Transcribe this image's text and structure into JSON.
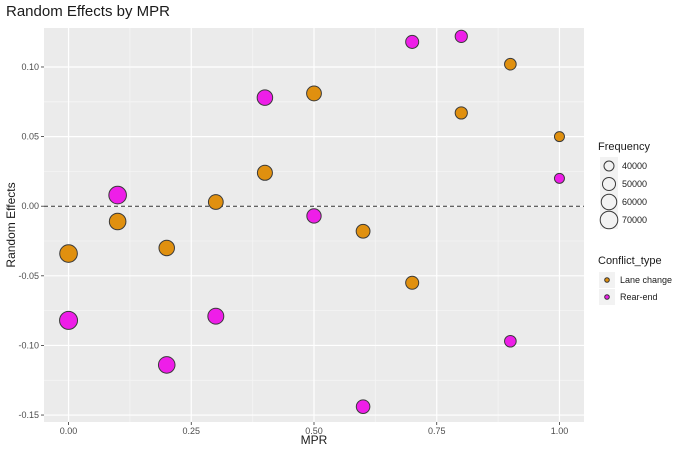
{
  "chart_data": {
    "type": "scatter",
    "title": "Random Effects by MPR",
    "xlabel": "MPR",
    "ylabel": "Random Effects",
    "xlim": [
      -0.05,
      1.05
    ],
    "ylim": [
      -0.155,
      0.128
    ],
    "x_ticks": [
      0.0,
      0.25,
      0.5,
      0.75,
      1.0
    ],
    "x_tick_labels": [
      "0.00",
      "0.25",
      "0.50",
      "0.75",
      "1.00"
    ],
    "y_ticks": [
      -0.15,
      -0.1,
      -0.05,
      0.0,
      0.05,
      0.1
    ],
    "y_tick_labels": [
      "-0.15",
      "-0.10",
      "-0.05",
      "0.00",
      "0.05",
      "0.10"
    ],
    "reference_line": {
      "y": 0.0,
      "style": "dashed"
    },
    "grid": true,
    "legend_placement": "right",
    "size_legend": {
      "title": "Frequency",
      "values": [
        40000,
        50000,
        60000,
        70000
      ],
      "labels": [
        "40000",
        "50000",
        "60000",
        "70000"
      ]
    },
    "color_legend": {
      "title": "Conflict_type",
      "entries": [
        {
          "label": "Lane change",
          "color": "#e0900f"
        },
        {
          "label": "Rear-end",
          "color": "#ee1ee8"
        }
      ]
    },
    "series": [
      {
        "name": "Lane change",
        "color": "#e0900f",
        "points": [
          {
            "x": 0.0,
            "y": -0.034,
            "size": 70000
          },
          {
            "x": 0.1,
            "y": -0.011,
            "size": 65000
          },
          {
            "x": 0.2,
            "y": -0.03,
            "size": 60000
          },
          {
            "x": 0.3,
            "y": 0.003,
            "size": 57000
          },
          {
            "x": 0.4,
            "y": 0.024,
            "size": 58000
          },
          {
            "x": 0.5,
            "y": 0.081,
            "size": 57000
          },
          {
            "x": 0.6,
            "y": -0.018,
            "size": 53000
          },
          {
            "x": 0.7,
            "y": -0.055,
            "size": 50000
          },
          {
            "x": 0.8,
            "y": 0.067,
            "size": 47000
          },
          {
            "x": 0.9,
            "y": 0.102,
            "size": 45000
          },
          {
            "x": 1.0,
            "y": 0.05,
            "size": 40000
          }
        ]
      },
      {
        "name": "Rear-end",
        "color": "#ee1ee8",
        "points": [
          {
            "x": 0.0,
            "y": -0.082,
            "size": 72000
          },
          {
            "x": 0.1,
            "y": 0.008,
            "size": 70000
          },
          {
            "x": 0.2,
            "y": -0.114,
            "size": 65000
          },
          {
            "x": 0.3,
            "y": -0.079,
            "size": 62000
          },
          {
            "x": 0.4,
            "y": 0.078,
            "size": 60000
          },
          {
            "x": 0.5,
            "y": -0.007,
            "size": 55000
          },
          {
            "x": 0.6,
            "y": -0.144,
            "size": 52000
          },
          {
            "x": 0.7,
            "y": 0.118,
            "size": 50000
          },
          {
            "x": 0.8,
            "y": 0.122,
            "size": 47000
          },
          {
            "x": 0.9,
            "y": -0.097,
            "size": 45000
          },
          {
            "x": 1.0,
            "y": 0.02,
            "size": 40000
          }
        ]
      }
    ]
  }
}
